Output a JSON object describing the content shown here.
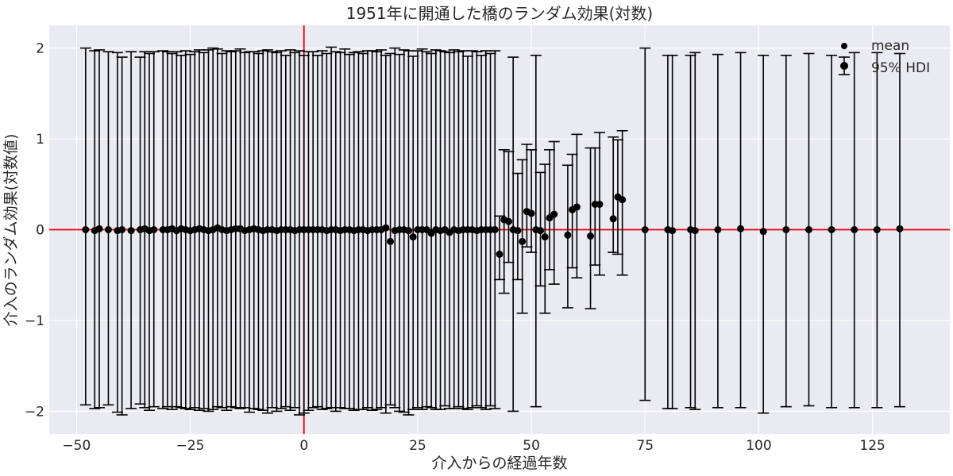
{
  "chart_data": {
    "type": "scatter",
    "title": "1951年に開通した橋のランダム効果(対数)",
    "xlabel": "介入からの経過年数",
    "ylabel": "介入のランダム効果(対数値)",
    "xlim": [
      -56,
      142
    ],
    "ylim": [
      -2.25,
      2.25
    ],
    "xticks": [
      -50,
      -25,
      0,
      25,
      50,
      75,
      100,
      125
    ],
    "xtick_labels": [
      "−50",
      "−25",
      "0",
      "25",
      "50",
      "75",
      "100",
      "125"
    ],
    "yticks": [
      -2,
      -1,
      0,
      1,
      2
    ],
    "ytick_labels": [
      "−2",
      "−1",
      "0",
      "1",
      "2"
    ],
    "grid": true,
    "reference_lines": {
      "vertical_x": 0,
      "horizontal_y": 0,
      "color": "#e8000b"
    },
    "legend": {
      "position": "top-right",
      "entries": [
        "mean",
        "95% HDI"
      ]
    },
    "series": [
      {
        "name": "mean / 95% HDI",
        "points": [
          {
            "x": -48,
            "y": 0.0,
            "lo": -1.93,
            "hi": 2.0
          },
          {
            "x": -46,
            "y": -0.01,
            "lo": -1.97,
            "hi": 1.97
          },
          {
            "x": -45,
            "y": 0.01,
            "lo": -1.96,
            "hi": 1.98
          },
          {
            "x": -43,
            "y": 0.0,
            "lo": -1.93,
            "hi": 1.96
          },
          {
            "x": -41,
            "y": -0.01,
            "lo": -2.01,
            "hi": 1.95
          },
          {
            "x": -40,
            "y": 0.0,
            "lo": -2.04,
            "hi": 1.9
          },
          {
            "x": -38,
            "y": -0.01,
            "lo": -1.97,
            "hi": 1.96
          },
          {
            "x": -36,
            "y": 0.0,
            "lo": -1.92,
            "hi": 1.9
          },
          {
            "x": -35,
            "y": 0.01,
            "lo": -1.96,
            "hi": 1.96
          },
          {
            "x": -34,
            "y": -0.01,
            "lo": -1.99,
            "hi": 1.94
          },
          {
            "x": -33,
            "y": 0.0,
            "lo": -1.95,
            "hi": 1.96
          },
          {
            "x": -31,
            "y": 0.0,
            "lo": -1.97,
            "hi": 1.97
          },
          {
            "x": -30,
            "y": 0.0,
            "lo": -1.95,
            "hi": 1.96
          },
          {
            "x": -29,
            "y": 0.01,
            "lo": -1.98,
            "hi": 1.94
          },
          {
            "x": -28,
            "y": -0.01,
            "lo": -1.95,
            "hi": 1.96
          },
          {
            "x": -27,
            "y": 0.01,
            "lo": -1.96,
            "hi": 1.92
          },
          {
            "x": -26,
            "y": 0.0,
            "lo": -1.97,
            "hi": 1.97
          },
          {
            "x": -25,
            "y": -0.01,
            "lo": -1.98,
            "hi": 1.93
          },
          {
            "x": -24,
            "y": 0.0,
            "lo": -1.96,
            "hi": 1.96
          },
          {
            "x": -23,
            "y": 0.01,
            "lo": -1.99,
            "hi": 1.98
          },
          {
            "x": -22,
            "y": 0.0,
            "lo": -1.97,
            "hi": 1.95
          },
          {
            "x": -21,
            "y": -0.01,
            "lo": -2.0,
            "hi": 1.98
          },
          {
            "x": -20,
            "y": 0.0,
            "lo": -1.98,
            "hi": 2.0
          },
          {
            "x": -19,
            "y": 0.02,
            "lo": -1.95,
            "hi": 1.99
          },
          {
            "x": -18,
            "y": 0.0,
            "lo": -1.96,
            "hi": 1.94
          },
          {
            "x": -17,
            "y": -0.01,
            "lo": -1.99,
            "hi": 1.97
          },
          {
            "x": -16,
            "y": 0.0,
            "lo": -1.95,
            "hi": 1.96
          },
          {
            "x": -15,
            "y": 0.01,
            "lo": -1.96,
            "hi": 1.97
          },
          {
            "x": -14,
            "y": 0.01,
            "lo": -1.97,
            "hi": 1.99
          },
          {
            "x": -13,
            "y": -0.01,
            "lo": -1.96,
            "hi": 1.95
          },
          {
            "x": -12,
            "y": 0.0,
            "lo": -2.01,
            "hi": 1.96
          },
          {
            "x": -11,
            "y": 0.01,
            "lo": -1.97,
            "hi": 1.96
          },
          {
            "x": -10,
            "y": 0.0,
            "lo": -1.98,
            "hi": 1.94
          },
          {
            "x": -9,
            "y": -0.01,
            "lo": -1.99,
            "hi": 1.97
          },
          {
            "x": -8,
            "y": 0.0,
            "lo": -2.02,
            "hi": 1.98
          },
          {
            "x": -7,
            "y": 0.0,
            "lo": -1.96,
            "hi": 1.96
          },
          {
            "x": -6,
            "y": -0.01,
            "lo": -2.0,
            "hi": 1.95
          },
          {
            "x": -5,
            "y": 0.0,
            "lo": -1.97,
            "hi": 1.97
          },
          {
            "x": -4,
            "y": 0.0,
            "lo": -1.95,
            "hi": 1.92
          },
          {
            "x": -3,
            "y": 0.0,
            "lo": -1.99,
            "hi": 1.98
          },
          {
            "x": -2,
            "y": -0.01,
            "lo": -1.96,
            "hi": 1.95
          },
          {
            "x": -1,
            "y": 0.0,
            "lo": -2.04,
            "hi": 1.97
          },
          {
            "x": 0,
            "y": 0.0,
            "lo": -2.02,
            "hi": 1.92
          },
          {
            "x": 1,
            "y": 0.0,
            "lo": -1.99,
            "hi": 1.96
          },
          {
            "x": 2,
            "y": 0.0,
            "lo": -1.96,
            "hi": 1.96
          },
          {
            "x": 3,
            "y": 0.0,
            "lo": -1.95,
            "hi": 1.92
          },
          {
            "x": 4,
            "y": 0.0,
            "lo": -1.98,
            "hi": 1.97
          },
          {
            "x": 5,
            "y": -0.01,
            "lo": -1.97,
            "hi": 1.94
          },
          {
            "x": 6,
            "y": 0.0,
            "lo": -1.96,
            "hi": 2.01
          },
          {
            "x": 7,
            "y": 0.0,
            "lo": -2.0,
            "hi": 1.96
          },
          {
            "x": 8,
            "y": -0.01,
            "lo": -1.96,
            "hi": 1.95
          },
          {
            "x": 9,
            "y": 0.0,
            "lo": -1.97,
            "hi": 1.99
          },
          {
            "x": 10,
            "y": 0.0,
            "lo": -1.97,
            "hi": 1.93
          },
          {
            "x": 11,
            "y": -0.01,
            "lo": -1.99,
            "hi": 1.95
          },
          {
            "x": 12,
            "y": 0.0,
            "lo": -1.98,
            "hi": 1.96
          },
          {
            "x": 13,
            "y": 0.0,
            "lo": -1.98,
            "hi": 1.94
          },
          {
            "x": 14,
            "y": -0.01,
            "lo": -1.96,
            "hi": 1.97
          },
          {
            "x": 15,
            "y": 0.0,
            "lo": -1.99,
            "hi": 1.97
          },
          {
            "x": 16,
            "y": 0.0,
            "lo": -1.98,
            "hi": 1.96
          },
          {
            "x": 17,
            "y": 0.0,
            "lo": -1.96,
            "hi": 1.98
          },
          {
            "x": 18,
            "y": 0.02,
            "lo": -2.02,
            "hi": 1.92
          },
          {
            "x": 19,
            "y": -0.13,
            "lo": -1.93,
            "hi": 1.94
          },
          {
            "x": 20,
            "y": -0.01,
            "lo": -1.96,
            "hi": 2.0
          },
          {
            "x": 21,
            "y": 0.0,
            "lo": -2.0,
            "hi": 1.93
          },
          {
            "x": 22,
            "y": 0.0,
            "lo": -2.01,
            "hi": 1.98
          },
          {
            "x": 23,
            "y": -0.01,
            "lo": -2.04,
            "hi": 1.97
          },
          {
            "x": 24,
            "y": -0.08,
            "lo": -1.98,
            "hi": 1.91
          },
          {
            "x": 25,
            "y": 0.0,
            "lo": -1.96,
            "hi": 1.97
          },
          {
            "x": 26,
            "y": 0.0,
            "lo": -1.98,
            "hi": 1.99
          },
          {
            "x": 27,
            "y": 0.0,
            "lo": -1.95,
            "hi": 1.96
          },
          {
            "x": 28,
            "y": -0.04,
            "lo": -1.96,
            "hi": 1.94
          },
          {
            "x": 29,
            "y": 0.0,
            "lo": -1.98,
            "hi": 1.98
          },
          {
            "x": 30,
            "y": -0.01,
            "lo": -1.98,
            "hi": 1.97
          },
          {
            "x": 31,
            "y": 0.0,
            "lo": -1.94,
            "hi": 1.96
          },
          {
            "x": 32,
            "y": -0.03,
            "lo": -1.97,
            "hi": 1.95
          },
          {
            "x": 33,
            "y": 0.0,
            "lo": -1.97,
            "hi": 1.98
          },
          {
            "x": 34,
            "y": -0.01,
            "lo": -1.95,
            "hi": 1.96
          },
          {
            "x": 35,
            "y": 0.0,
            "lo": -1.97,
            "hi": 1.97
          },
          {
            "x": 36,
            "y": 0.0,
            "lo": -1.98,
            "hi": 1.91
          },
          {
            "x": 37,
            "y": 0.0,
            "lo": -1.96,
            "hi": 1.97
          },
          {
            "x": 38,
            "y": -0.01,
            "lo": -1.94,
            "hi": 1.96
          },
          {
            "x": 39,
            "y": 0.0,
            "lo": -1.96,
            "hi": 1.92
          },
          {
            "x": 40,
            "y": 0.0,
            "lo": -1.98,
            "hi": 1.97
          },
          {
            "x": 41,
            "y": 0.0,
            "lo": -1.94,
            "hi": 1.94
          },
          {
            "x": 42,
            "y": 0.0,
            "lo": -1.97,
            "hi": 1.97
          },
          {
            "x": 43,
            "y": -0.27,
            "lo": -0.55,
            "hi": 0.15
          },
          {
            "x": 44,
            "y": 0.11,
            "lo": -0.7,
            "hi": 0.88
          },
          {
            "x": 45,
            "y": 0.09,
            "lo": -0.36,
            "hi": 0.86
          },
          {
            "x": 46,
            "y": 0.0,
            "lo": -2.0,
            "hi": 1.9
          },
          {
            "x": 47,
            "y": -0.01,
            "lo": -0.55,
            "hi": 0.62
          },
          {
            "x": 48,
            "y": -0.13,
            "lo": -0.92,
            "hi": 0.77
          },
          {
            "x": 49,
            "y": 0.2,
            "lo": -0.19,
            "hi": 0.94
          },
          {
            "x": 50,
            "y": 0.18,
            "lo": -0.25,
            "hi": 0.88
          },
          {
            "x": 51,
            "y": 0.0,
            "lo": -1.95,
            "hi": 1.92
          },
          {
            "x": 52,
            "y": -0.01,
            "lo": -0.62,
            "hi": 0.63
          },
          {
            "x": 53,
            "y": -0.08,
            "lo": -0.92,
            "hi": 0.72
          },
          {
            "x": 54,
            "y": 0.13,
            "lo": -0.44,
            "hi": 0.88
          },
          {
            "x": 55,
            "y": 0.17,
            "lo": -0.6,
            "hi": 0.97
          },
          {
            "x": 58,
            "y": -0.06,
            "lo": -0.86,
            "hi": 0.71
          },
          {
            "x": 59,
            "y": 0.22,
            "lo": -0.42,
            "hi": 0.83
          },
          {
            "x": 60,
            "y": 0.25,
            "lo": -0.53,
            "hi": 1.05
          },
          {
            "x": 63,
            "y": -0.07,
            "lo": -0.87,
            "hi": 0.9
          },
          {
            "x": 64,
            "y": 0.28,
            "lo": -0.39,
            "hi": 0.9
          },
          {
            "x": 65,
            "y": 0.28,
            "lo": -0.5,
            "hi": 1.07
          },
          {
            "x": 68,
            "y": 0.12,
            "lo": -0.25,
            "hi": 1.02
          },
          {
            "x": 69,
            "y": 0.36,
            "lo": -0.27,
            "hi": 0.99
          },
          {
            "x": 70,
            "y": 0.33,
            "lo": -0.5,
            "hi": 1.09
          },
          {
            "x": 75,
            "y": 0.0,
            "lo": -1.88,
            "hi": 2.0
          },
          {
            "x": 80,
            "y": 0.0,
            "lo": -1.97,
            "hi": 1.92
          },
          {
            "x": 81,
            "y": -0.01,
            "lo": -1.97,
            "hi": 1.92
          },
          {
            "x": 85,
            "y": 0.0,
            "lo": -1.96,
            "hi": 1.92
          },
          {
            "x": 86,
            "y": -0.01,
            "lo": -1.98,
            "hi": 1.95
          },
          {
            "x": 91,
            "y": 0.0,
            "lo": -1.96,
            "hi": 1.93
          },
          {
            "x": 96,
            "y": 0.01,
            "lo": -1.96,
            "hi": 1.95
          },
          {
            "x": 101,
            "y": -0.02,
            "lo": -2.02,
            "hi": 1.92
          },
          {
            "x": 106,
            "y": 0.0,
            "lo": -1.95,
            "hi": 1.92
          },
          {
            "x": 111,
            "y": 0.0,
            "lo": -1.94,
            "hi": 1.94
          },
          {
            "x": 116,
            "y": 0.0,
            "lo": -1.96,
            "hi": 1.92
          },
          {
            "x": 121,
            "y": 0.0,
            "lo": -1.96,
            "hi": 1.95
          },
          {
            "x": 126,
            "y": 0.0,
            "lo": -1.96,
            "hi": 1.95
          },
          {
            "x": 131,
            "y": 0.01,
            "lo": -1.95,
            "hi": 1.94
          }
        ]
      }
    ]
  }
}
